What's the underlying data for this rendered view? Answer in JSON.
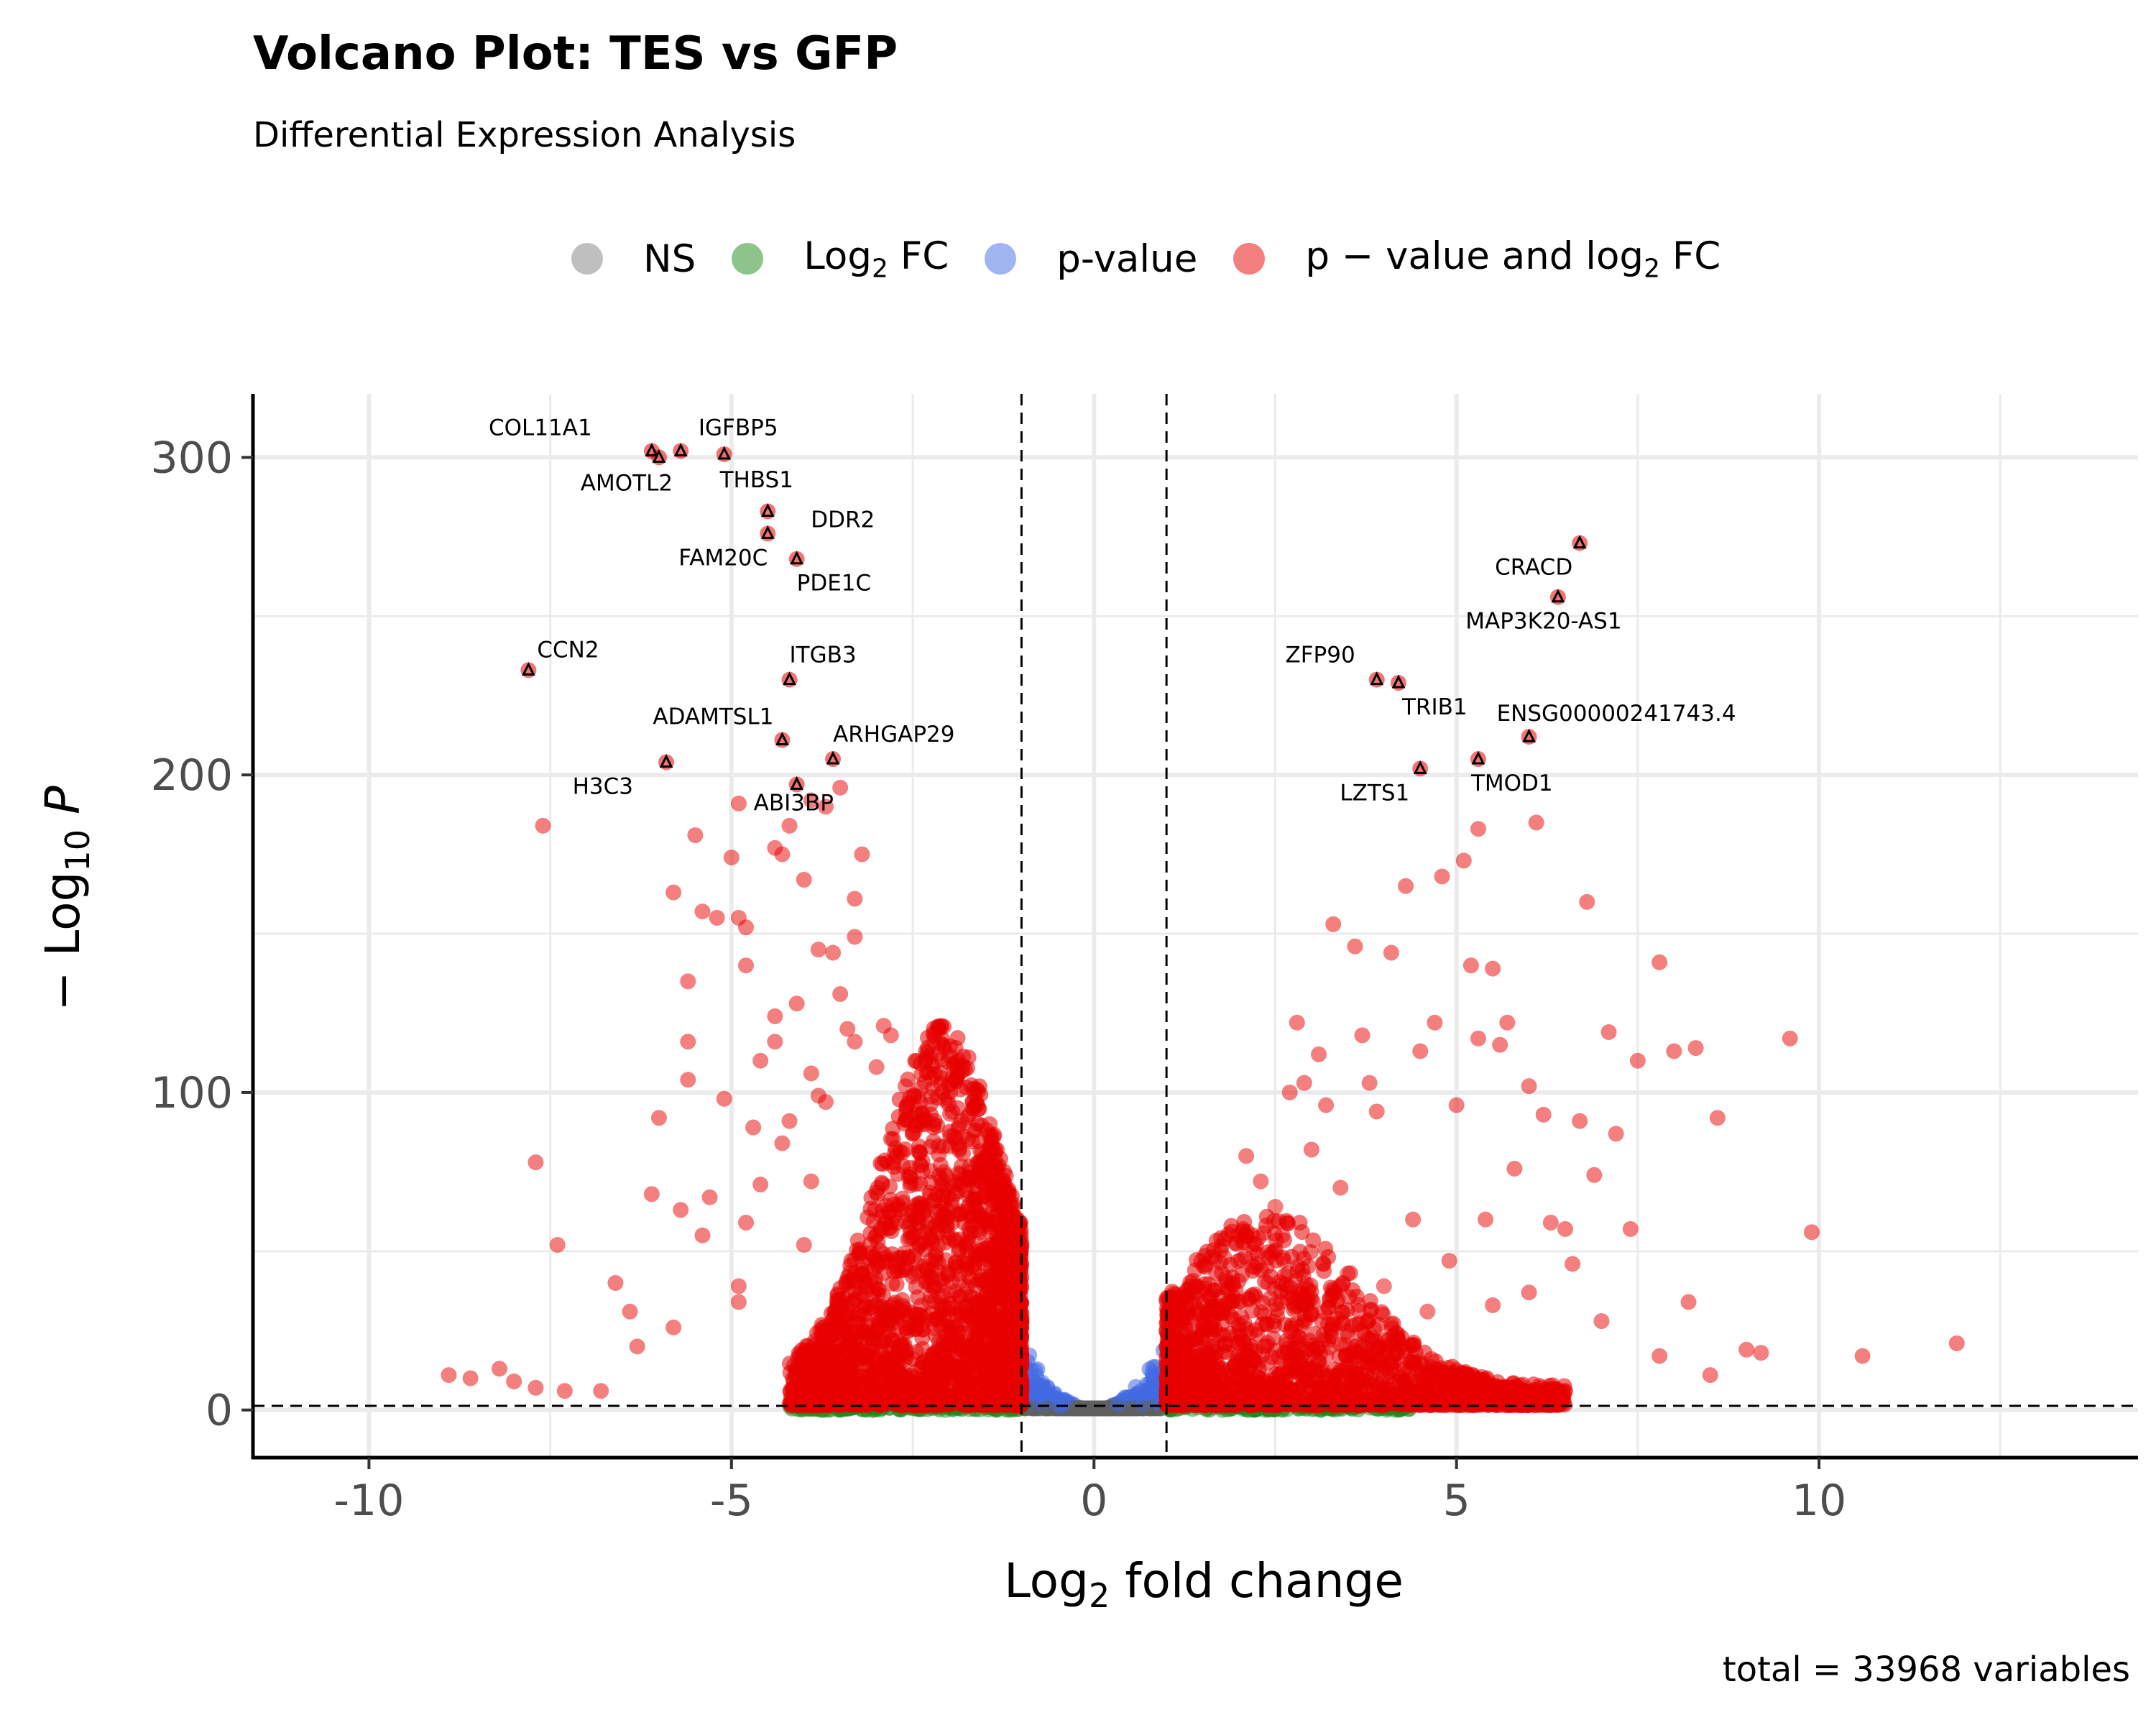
{
  "title": "Volcano Plot: TES vs GFP",
  "subtitle": "Differential Expression Analysis",
  "caption": "total = 33968 variables",
  "legend": [
    {
      "base": "NS",
      "sub": "",
      "after": "",
      "color": "#808080"
    },
    {
      "base": "Log",
      "sub": "2",
      "after": " FC",
      "color": "#1a8a1a"
    },
    {
      "base": "p-value",
      "sub": "",
      "after": "",
      "color": "#4169e1"
    },
    {
      "base": "p − value and log",
      "sub": "2",
      "after": " FC",
      "color": "#e80000"
    }
  ],
  "chart_data": {
    "type": "scatter",
    "xlabel": "Log2 fold change",
    "ylabel": "−Log10 P",
    "xlim": [
      -11.6,
      14.4
    ],
    "ylim": [
      -15,
      320
    ],
    "x_ticks": [
      -10,
      -5,
      0,
      5,
      10
    ],
    "x_tick_labels": [
      "-10",
      "-5",
      "0",
      "5",
      "10"
    ],
    "y_ticks": [
      0,
      100,
      200,
      300
    ],
    "y_tick_labels": [
      "0",
      "100",
      "200",
      "300"
    ],
    "grid": true,
    "fc_cutoff": [
      -1,
      1
    ],
    "p_cutoff": 1.3,
    "labeled_genes": [
      {
        "name": "COL11A1",
        "x": -6.1,
        "y": 302
      },
      {
        "name": "IGFBP5",
        "x": -5.7,
        "y": 302
      },
      {
        "name": "AMOTL2",
        "x": -6.0,
        "y": 300
      },
      {
        "name": "THBS1",
        "x": -5.1,
        "y": 301
      },
      {
        "name": "DDR2",
        "x": -4.5,
        "y": 283
      },
      {
        "name": "FAM20C",
        "x": -4.5,
        "y": 276
      },
      {
        "name": "PDE1C",
        "x": -4.1,
        "y": 268
      },
      {
        "name": "CCN2",
        "x": -7.8,
        "y": 233
      },
      {
        "name": "ITGB3",
        "x": -4.2,
        "y": 230
      },
      {
        "name": "ADAMTSL1",
        "x": -4.3,
        "y": 211
      },
      {
        "name": "ARHGAP29",
        "x": -3.6,
        "y": 205
      },
      {
        "name": "H3C3",
        "x": -5.9,
        "y": 204
      },
      {
        "name": "ABI3BP",
        "x": -4.1,
        "y": 197
      },
      {
        "name": "CRACD",
        "x": 6.7,
        "y": 273
      },
      {
        "name": "MAP3K20-AS1",
        "x": 6.4,
        "y": 256
      },
      {
        "name": "ZFP90",
        "x": 3.9,
        "y": 230
      },
      {
        "name": "TRIB1",
        "x": 4.2,
        "y": 229
      },
      {
        "name": "ENSG00000241743.4",
        "x": 6.0,
        "y": 212
      },
      {
        "name": "LZTS1",
        "x": 4.5,
        "y": 202
      },
      {
        "name": "TMOD1",
        "x": 5.3,
        "y": 205
      }
    ],
    "sig_points_left": [
      [
        -8.9,
        11
      ],
      [
        -8.6,
        10
      ],
      [
        -8.2,
        13
      ],
      [
        -8.0,
        9
      ],
      [
        -7.7,
        7
      ],
      [
        -7.3,
        6
      ],
      [
        -6.8,
        6
      ],
      [
        -6.6,
        40
      ],
      [
        -6.4,
        31
      ],
      [
        -6.3,
        20
      ],
      [
        -6.1,
        68
      ],
      [
        -6.0,
        92
      ],
      [
        -5.8,
        26
      ],
      [
        -5.7,
        63
      ],
      [
        -5.6,
        104
      ],
      [
        -5.6,
        116
      ],
      [
        -5.4,
        55
      ],
      [
        -5.3,
        67
      ],
      [
        -5.1,
        98
      ],
      [
        -4.9,
        34
      ],
      [
        -4.9,
        39
      ],
      [
        -4.8,
        59
      ],
      [
        -4.7,
        89
      ],
      [
        -4.6,
        71
      ],
      [
        -4.4,
        116
      ],
      [
        -4.3,
        84
      ],
      [
        -4.2,
        91
      ],
      [
        -4.0,
        52
      ],
      [
        -3.9,
        72
      ],
      [
        -3.8,
        99
      ],
      [
        -7.6,
        184
      ],
      [
        -7.7,
        78
      ],
      [
        -7.4,
        52
      ],
      [
        -5.8,
        163
      ],
      [
        -5.6,
        135
      ],
      [
        -5.4,
        157
      ],
      [
        -5.2,
        155
      ],
      [
        -5.0,
        174
      ],
      [
        -4.9,
        155
      ],
      [
        -4.8,
        152
      ],
      [
        -4.8,
        140
      ],
      [
        -4.6,
        110
      ],
      [
        -4.4,
        177
      ],
      [
        -4.3,
        175
      ],
      [
        -4.2,
        184
      ],
      [
        -4.0,
        167
      ],
      [
        -3.8,
        145
      ],
      [
        -3.6,
        144
      ],
      [
        -3.5,
        131
      ],
      [
        -3.3,
        149
      ],
      [
        -3.2,
        175
      ],
      [
        -3.3,
        161
      ],
      [
        -3.9,
        106
      ],
      [
        -3.7,
        97
      ],
      [
        -3.4,
        120
      ],
      [
        -3.3,
        116
      ],
      [
        -3.0,
        108
      ],
      [
        -2.9,
        121
      ],
      [
        -5.5,
        181
      ],
      [
        -4.9,
        191
      ],
      [
        -3.9,
        192
      ],
      [
        -3.7,
        190
      ],
      [
        -3.5,
        196
      ],
      [
        -4.1,
        128
      ],
      [
        -4.4,
        124
      ],
      [
        -2.8,
        118
      ],
      [
        -2.6,
        102
      ],
      [
        -2.5,
        87
      ],
      [
        -2.4,
        81
      ],
      [
        -2.2,
        66
      ]
    ],
    "sig_points_right": [
      [
        1.8,
        48
      ],
      [
        2.1,
        80
      ],
      [
        2.3,
        72
      ],
      [
        2.5,
        64
      ],
      [
        2.6,
        55
      ],
      [
        2.7,
        100
      ],
      [
        2.8,
        122
      ],
      [
        2.9,
        103
      ],
      [
        3.0,
        82
      ],
      [
        3.1,
        112
      ],
      [
        3.2,
        96
      ],
      [
        3.4,
        70
      ],
      [
        3.3,
        153
      ],
      [
        3.6,
        146
      ],
      [
        3.7,
        118
      ],
      [
        3.8,
        103
      ],
      [
        3.9,
        94
      ],
      [
        4.1,
        144
      ],
      [
        4.3,
        165
      ],
      [
        4.5,
        113
      ],
      [
        4.7,
        122
      ],
      [
        4.8,
        168
      ],
      [
        5.0,
        96
      ],
      [
        5.1,
        173
      ],
      [
        5.2,
        140
      ],
      [
        5.3,
        117
      ],
      [
        5.4,
        60
      ],
      [
        5.5,
        139
      ],
      [
        5.6,
        115
      ],
      [
        5.7,
        122
      ],
      [
        5.8,
        76
      ],
      [
        6.0,
        102
      ],
      [
        6.1,
        185
      ],
      [
        6.2,
        93
      ],
      [
        6.3,
        59
      ],
      [
        6.5,
        57
      ],
      [
        6.7,
        91
      ],
      [
        6.8,
        160
      ],
      [
        6.9,
        74
      ],
      [
        7.1,
        119
      ],
      [
        7.2,
        87
      ],
      [
        7.5,
        110
      ],
      [
        7.8,
        141
      ],
      [
        8.0,
        113
      ],
      [
        8.3,
        114
      ],
      [
        8.6,
        92
      ],
      [
        9.0,
        19
      ],
      [
        9.2,
        18
      ],
      [
        9.6,
        117
      ],
      [
        9.9,
        56
      ],
      [
        10.6,
        17
      ],
      [
        11.9,
        21
      ],
      [
        5.3,
        183
      ],
      [
        3.2,
        17
      ],
      [
        4.1,
        27
      ],
      [
        4.4,
        60
      ],
      [
        4.9,
        47
      ],
      [
        5.5,
        33
      ],
      [
        6.0,
        37
      ],
      [
        6.6,
        46
      ],
      [
        7.0,
        28
      ],
      [
        7.4,
        57
      ],
      [
        7.8,
        17
      ],
      [
        8.2,
        34
      ],
      [
        8.5,
        11
      ],
      [
        2.4,
        40
      ],
      [
        2.9,
        35
      ],
      [
        3.5,
        43
      ],
      [
        4.0,
        39
      ],
      [
        4.6,
        31
      ]
    ]
  }
}
